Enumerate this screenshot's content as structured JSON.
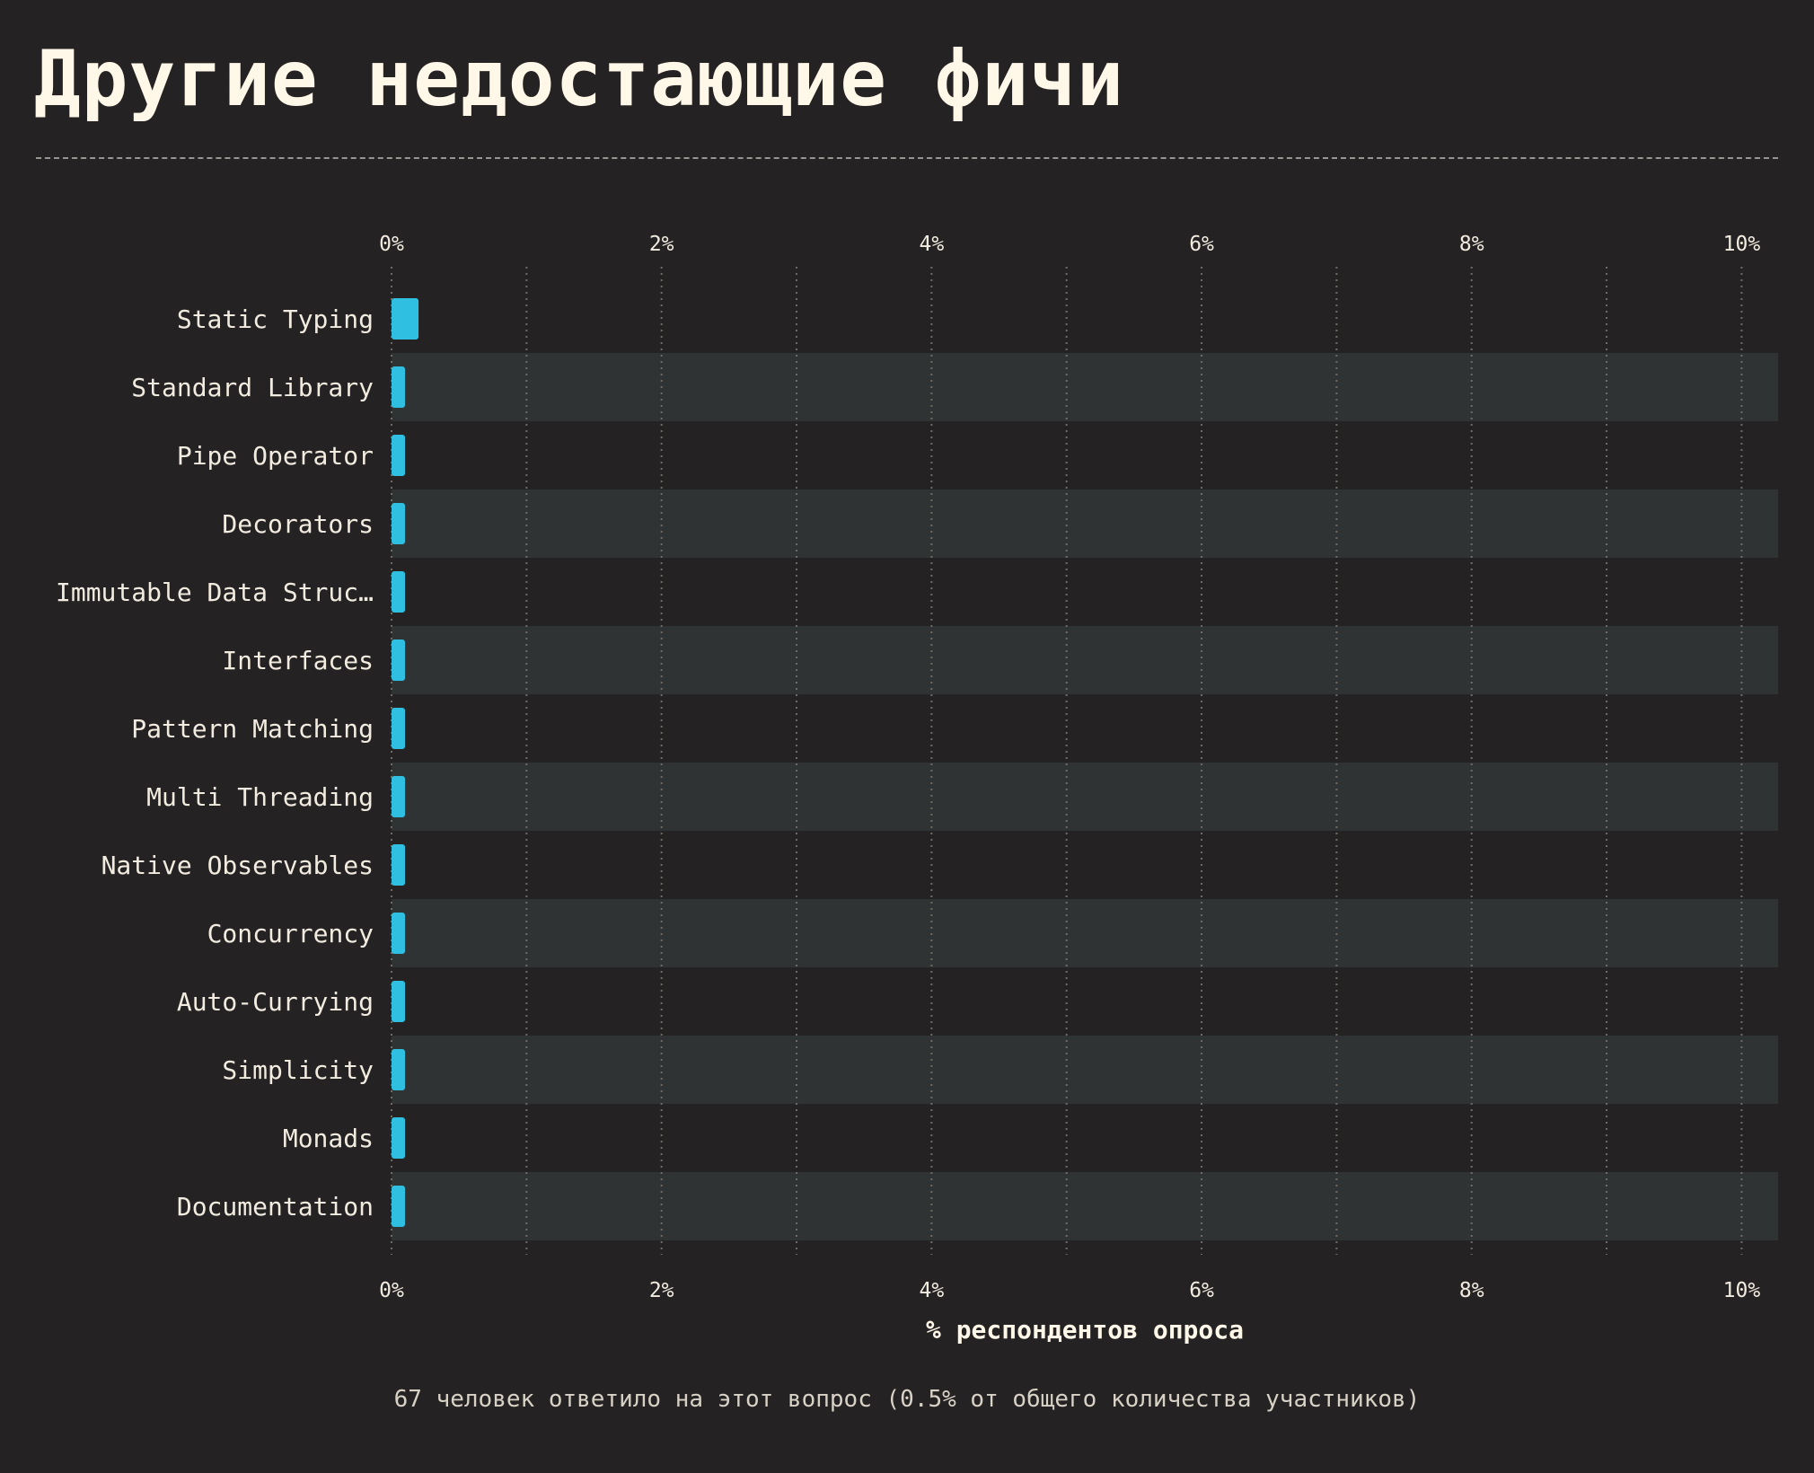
{
  "title": "Другие недостающие фичи",
  "footnote": "67 человек ответило на этот вопрос (0.5% от общего количества участников)",
  "colors": {
    "background": "#252223",
    "band": "#2f3334",
    "bar": "#2fbfe0",
    "text": "#fff7e8"
  },
  "chart_data": {
    "type": "bar",
    "orientation": "horizontal",
    "categories": [
      "Static Typing",
      "Standard Library",
      "Pipe Operator",
      "Decorators",
      "Immutable Data Struc…",
      "Interfaces",
      "Pattern Matching",
      "Multi Threading",
      "Native Observables",
      "Concurrency",
      "Auto-Currying",
      "Simplicity",
      "Monads",
      "Documentation"
    ],
    "values": [
      0.2,
      0.1,
      0.1,
      0.1,
      0.1,
      0.1,
      0.1,
      0.1,
      0.1,
      0.1,
      0.1,
      0.1,
      0.1,
      0.1
    ],
    "xlabel": "% респондентов опроса",
    "xlim": [
      0,
      10.27
    ],
    "xticks": [
      0,
      2,
      4,
      6,
      8,
      10
    ],
    "xtick_labels": [
      "0%",
      "2%",
      "4%",
      "6%",
      "8%",
      "10%"
    ],
    "minor_gridlines": [
      1,
      3,
      5,
      7,
      9
    ],
    "grid": true,
    "tick_labels_top_and_bottom": true,
    "legend": "none"
  }
}
